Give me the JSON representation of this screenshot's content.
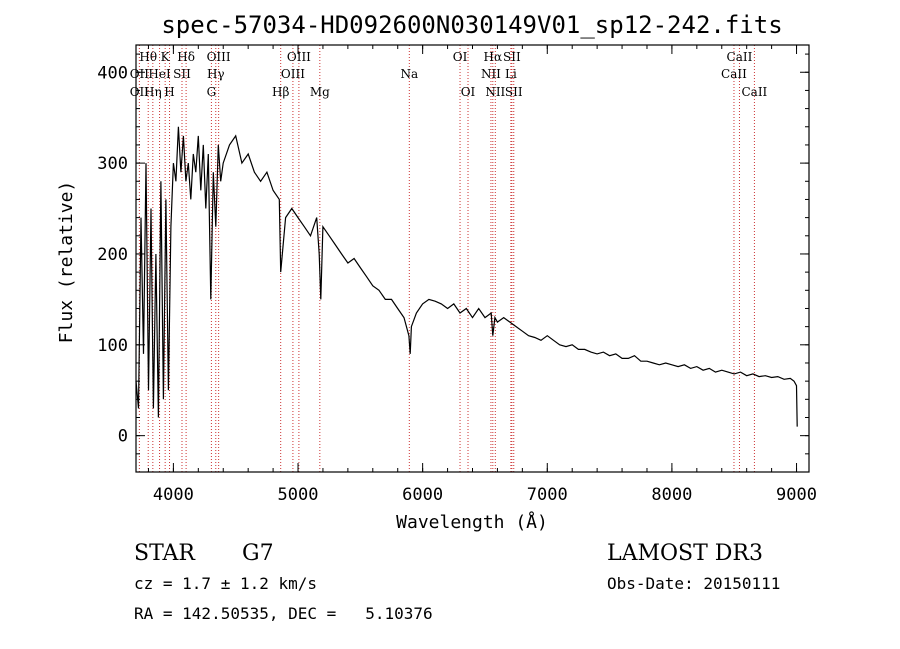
{
  "chart_data": {
    "type": "line",
    "title": "spec-57034-HD092600N030149V01_sp12-242.fits",
    "xlabel": "Wavelength (Å)",
    "ylabel": "Flux (relative)",
    "xlim": [
      3700,
      9100
    ],
    "ylim": [
      -40,
      430
    ],
    "x_ticks": [
      4000,
      5000,
      6000,
      7000,
      8000,
      9000
    ],
    "x_tick_labels": [
      "4000",
      "5000",
      "6000",
      "7000",
      "8000",
      "9000"
    ],
    "y_ticks": [
      0,
      100,
      200,
      300,
      400
    ],
    "y_tick_labels": [
      "0",
      "100",
      "200",
      "300",
      "400"
    ],
    "series": [
      {
        "name": "spectrum",
        "color": "#000000",
        "x": [
          3700,
          3720,
          3740,
          3760,
          3780,
          3800,
          3820,
          3840,
          3860,
          3880,
          3900,
          3920,
          3940,
          3960,
          3980,
          4000,
          4020,
          4040,
          4060,
          4080,
          4100,
          4120,
          4140,
          4160,
          4180,
          4200,
          4220,
          4240,
          4260,
          4280,
          4300,
          4320,
          4340,
          4360,
          4380,
          4400,
          4450,
          4500,
          4550,
          4600,
          4650,
          4700,
          4750,
          4800,
          4850,
          4861,
          4900,
          4950,
          5000,
          5050,
          5100,
          5150,
          5170,
          5183,
          5200,
          5250,
          5300,
          5350,
          5400,
          5450,
          5500,
          5550,
          5600,
          5650,
          5700,
          5750,
          5800,
          5850,
          5890,
          5900,
          5910,
          5950,
          6000,
          6050,
          6100,
          6150,
          6200,
          6250,
          6300,
          6350,
          6400,
          6450,
          6500,
          6550,
          6563,
          6580,
          6600,
          6650,
          6700,
          6750,
          6800,
          6850,
          6900,
          6950,
          7000,
          7050,
          7100,
          7150,
          7200,
          7250,
          7300,
          7350,
          7400,
          7450,
          7500,
          7550,
          7600,
          7650,
          7700,
          7750,
          7800,
          7850,
          7900,
          7950,
          8000,
          8050,
          8100,
          8150,
          8200,
          8250,
          8300,
          8350,
          8400,
          8450,
          8500,
          8550,
          8600,
          8650,
          8700,
          8750,
          8800,
          8850,
          8900,
          8950,
          8980,
          9000,
          9005
        ],
        "y": [
          60,
          30,
          240,
          90,
          300,
          50,
          250,
          30,
          200,
          20,
          280,
          40,
          260,
          50,
          230,
          300,
          280,
          340,
          290,
          330,
          280,
          300,
          260,
          310,
          290,
          330,
          270,
          320,
          250,
          310,
          150,
          290,
          230,
          320,
          280,
          300,
          320,
          330,
          300,
          310,
          290,
          280,
          290,
          270,
          260,
          180,
          240,
          250,
          240,
          230,
          220,
          240,
          200,
          150,
          230,
          220,
          210,
          200,
          190,
          195,
          185,
          175,
          165,
          160,
          150,
          150,
          140,
          130,
          110,
          90,
          120,
          135,
          145,
          150,
          148,
          145,
          140,
          145,
          135,
          140,
          130,
          140,
          130,
          135,
          110,
          130,
          125,
          130,
          125,
          120,
          115,
          110,
          108,
          105,
          110,
          105,
          100,
          98,
          100,
          95,
          95,
          92,
          90,
          92,
          88,
          90,
          85,
          85,
          88,
          82,
          82,
          80,
          78,
          80,
          78,
          76,
          78,
          74,
          76,
          72,
          74,
          70,
          72,
          70,
          68,
          70,
          66,
          68,
          65,
          66,
          64,
          65,
          62,
          63,
          60,
          55,
          10
        ],
        "ylim_visual_note": "noisy stellar continuum"
      }
    ],
    "annotations": [
      {
        "label": "Hθ",
        "x": 3798,
        "row": 1
      },
      {
        "label": "OII",
        "x": 3727,
        "row": 2
      },
      {
        "label": "OII",
        "x": 3727,
        "row": 3
      },
      {
        "label": "Hη",
        "x": 3835,
        "row": 3
      },
      {
        "label": "HeI",
        "x": 3889,
        "row": 2
      },
      {
        "label": "K",
        "x": 3934,
        "row": 1
      },
      {
        "label": "H",
        "x": 3969,
        "row": 3
      },
      {
        "label": "SII",
        "x": 4069,
        "row": 2
      },
      {
        "label": "Hδ",
        "x": 4102,
        "row": 1
      },
      {
        "label": "OIII",
        "x": 4363,
        "row": 1
      },
      {
        "label": "Hγ",
        "x": 4340,
        "row": 2
      },
      {
        "label": "G",
        "x": 4305,
        "row": 3
      },
      {
        "label": "Hβ",
        "x": 4861,
        "row": 3
      },
      {
        "label": "OIII",
        "x": 5007,
        "row": 1
      },
      {
        "label": "OIII",
        "x": 4959,
        "row": 2
      },
      {
        "label": "Mg",
        "x": 5175,
        "row": 3
      },
      {
        "label": "Na",
        "x": 5893,
        "row": 2
      },
      {
        "label": "OI",
        "x": 6300,
        "row": 1
      },
      {
        "label": "OI",
        "x": 6364,
        "row": 3
      },
      {
        "label": "Hα",
        "x": 6563,
        "row": 1
      },
      {
        "label": "NII",
        "x": 6548,
        "row": 2
      },
      {
        "label": "NII",
        "x": 6583,
        "row": 3
      },
      {
        "label": "SII",
        "x": 6716,
        "row": 1
      },
      {
        "label": "Li",
        "x": 6708,
        "row": 2
      },
      {
        "label": "SII",
        "x": 6731,
        "row": 3
      },
      {
        "label": "CaII",
        "x": 8542,
        "row": 1
      },
      {
        "label": "CaII",
        "x": 8498,
        "row": 2
      },
      {
        "label": "CaII",
        "x": 8662,
        "row": 3
      }
    ],
    "line_markers": [
      3727,
      3798,
      3835,
      3889,
      3934,
      3969,
      4069,
      4102,
      4305,
      4340,
      4363,
      4861,
      4959,
      5007,
      5175,
      5893,
      6300,
      6364,
      6548,
      6563,
      6583,
      6708,
      6716,
      6731,
      8498,
      8542,
      8662
    ],
    "marker_color": "#cc3333"
  },
  "info": {
    "class": "STAR",
    "subclass": "G7",
    "survey": "LAMOST DR3",
    "cz": "cz = 1.7 ± 1.2 km/s",
    "obs_date": "Obs-Date: 20150111",
    "coords": "RA = 142.50535, DEC =   5.10376"
  }
}
